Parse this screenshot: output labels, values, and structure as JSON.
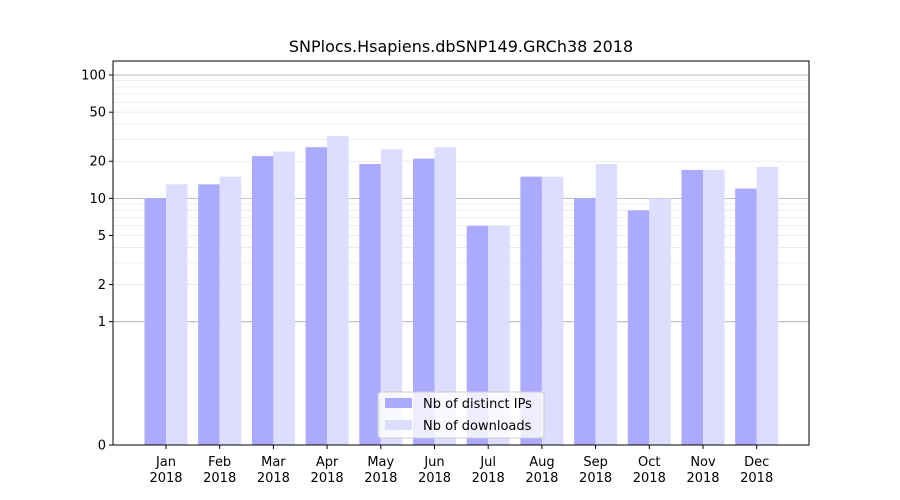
{
  "chart_data": {
    "type": "bar",
    "title": "SNPlocs.Hsapiens.dbSNP149.GRCh38 2018",
    "xlabel": "",
    "ylabel": "",
    "yscale": "symlog",
    "ylim": [
      0,
      130
    ],
    "yticks": [
      0,
      1,
      2,
      5,
      10,
      20,
      50,
      100
    ],
    "ytick_labels": [
      "0",
      "1",
      "2",
      "5",
      "10",
      "20",
      "50",
      "100"
    ],
    "categories": [
      "Jan",
      "Feb",
      "Mar",
      "Apr",
      "May",
      "Jun",
      "Jul",
      "Aug",
      "Sep",
      "Oct",
      "Nov",
      "Dec"
    ],
    "category_sublabels": [
      "2018",
      "2018",
      "2018",
      "2018",
      "2018",
      "2018",
      "2018",
      "2018",
      "2018",
      "2018",
      "2018",
      "2018"
    ],
    "series": [
      {
        "name": "Nb of distinct IPs",
        "color": "#aaaaff",
        "values": [
          10,
          13,
          22,
          26,
          19,
          21,
          6,
          15,
          10,
          8,
          17,
          12
        ]
      },
      {
        "name": "Nb of downloads",
        "color": "#ddddff",
        "values": [
          13,
          15,
          24,
          32,
          25,
          26,
          6,
          15,
          19,
          10,
          17,
          18
        ]
      }
    ],
    "legend_position": "lower-center",
    "grid": true
  }
}
